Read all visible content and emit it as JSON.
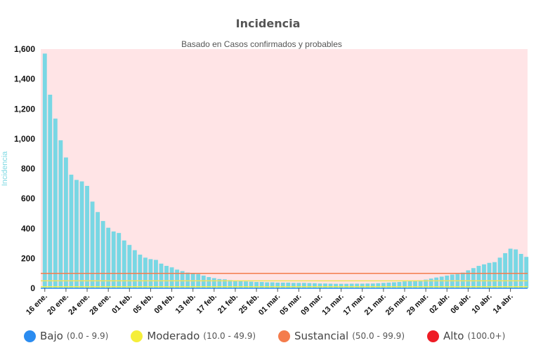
{
  "chart_data": {
    "type": "bar",
    "title": "Incidencia",
    "subtitle": "Basado en Casos confirmados y probables",
    "ylabel": "Incidencia",
    "xlabel": "",
    "ylim": [
      0,
      1600
    ],
    "yticks": [
      "0",
      "200",
      "400",
      "600",
      "800",
      "1,000",
      "1,200",
      "1,400",
      "1,600"
    ],
    "xtick_labels": [
      "16 ene.",
      "20 ene.",
      "24 ene.",
      "28 ene.",
      "01 feb.",
      "05 feb.",
      "09 feb.",
      "13 feb.",
      "17 feb.",
      "21 feb.",
      "25 feb.",
      "01 mar.",
      "05 mar.",
      "09 mar.",
      "13 mar.",
      "17 mar.",
      "21 mar.",
      "25 mar.",
      "29 mar.",
      "02 abr.",
      "06 abr.",
      "10 abr.",
      "14 abr."
    ],
    "values": [
      1570,
      1295,
      1135,
      990,
      875,
      760,
      725,
      715,
      685,
      580,
      510,
      450,
      405,
      380,
      370,
      320,
      290,
      255,
      225,
      205,
      195,
      190,
      165,
      150,
      140,
      125,
      115,
      105,
      100,
      95,
      85,
      75,
      68,
      62,
      60,
      55,
      52,
      50,
      46,
      44,
      42,
      42,
      40,
      40,
      38,
      38,
      38,
      36,
      36,
      36,
      35,
      34,
      32,
      32,
      31,
      30,
      30,
      30,
      31,
      31,
      31,
      32,
      32,
      34,
      36,
      38,
      40,
      42,
      46,
      50,
      52,
      54,
      58,
      65,
      72,
      78,
      85,
      92,
      95,
      105,
      120,
      135,
      150,
      160,
      170,
      175,
      205,
      235,
      265,
      260,
      230,
      210
    ],
    "thresholds": [
      {
        "value": 10,
        "color": "#f5f542"
      },
      {
        "value": 50,
        "color": "#f0e25a"
      },
      {
        "value": 100,
        "color": "#f47c4c"
      }
    ],
    "bar_color": "#78d7e4",
    "background_color": "#ffe4e6",
    "grid": false,
    "legend_position": "bottom"
  },
  "legend": [
    {
      "label": "Bajo",
      "range": "(0.0 - 9.9)",
      "color": "#2b8cf0"
    },
    {
      "label": "Moderado",
      "range": "(10.0 - 49.9)",
      "color": "#f5ee3a"
    },
    {
      "label": "Sustancial",
      "range": "(50.0 - 99.9)",
      "color": "#f47c4c"
    },
    {
      "label": "Alto",
      "range": "(100.0+)",
      "color": "#ee1c25"
    }
  ]
}
